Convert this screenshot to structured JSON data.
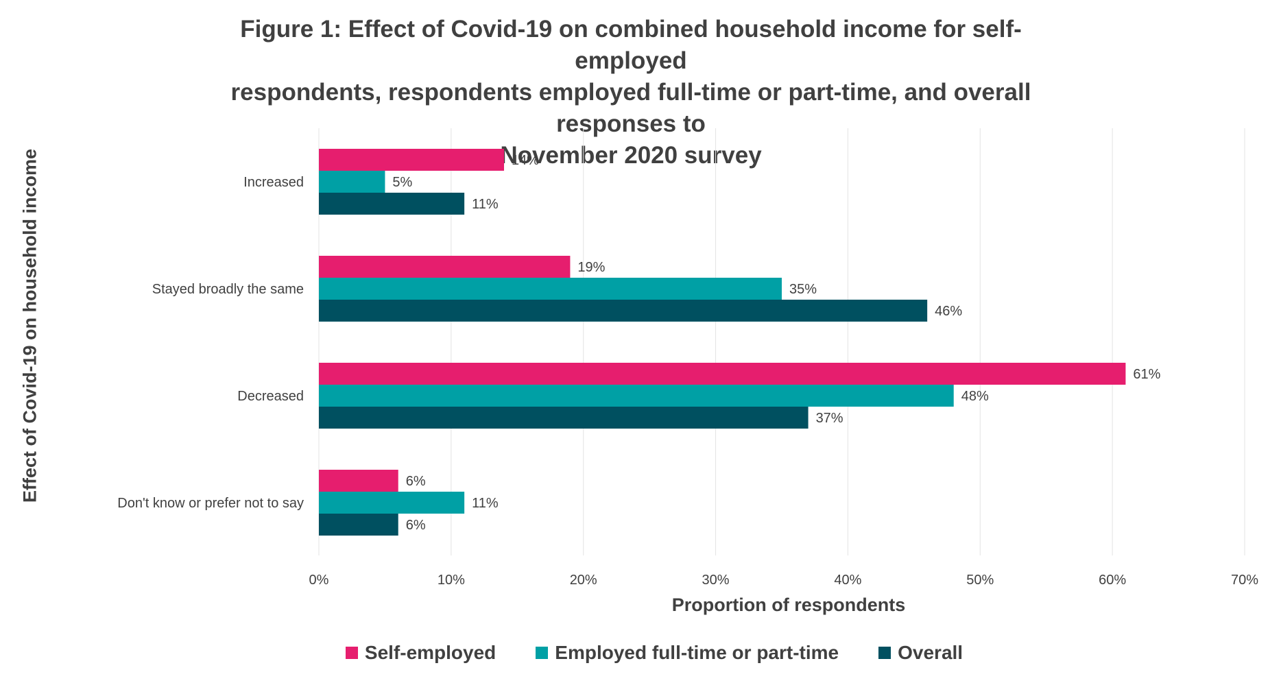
{
  "chart_data": {
    "type": "bar",
    "orientation": "horizontal",
    "title_lines": [
      "Figure 1: Effect of Covid-19 on combined household income for self-employed",
      "respondents, respondents employed full-time or part-time, and overall responses to",
      "November 2020 survey"
    ],
    "xlabel": "Proportion of respondents",
    "ylabel": "Effect of Covid-19 on household income",
    "categories": [
      "Increased",
      "Stayed broadly the same",
      "Decreased",
      "Don't know or prefer not to say"
    ],
    "series": [
      {
        "name": "Self-employed",
        "color": "#e61e6e",
        "values": [
          14,
          19,
          61,
          6
        ]
      },
      {
        "name": "Employed full-time or part-time",
        "color": "#00a0a5",
        "values": [
          5,
          35,
          48,
          11
        ]
      },
      {
        "name": "Overall",
        "color": "#005060",
        "values": [
          11,
          46,
          37,
          6
        ]
      }
    ],
    "value_suffix": "%",
    "xlim": [
      0,
      70
    ],
    "xticks": [
      0,
      10,
      20,
      30,
      40,
      50,
      60,
      70
    ],
    "xtick_labels": [
      "0%",
      "10%",
      "20%",
      "30%",
      "40%",
      "50%",
      "60%",
      "70%"
    ],
    "grid": true,
    "legend_position": "bottom"
  }
}
